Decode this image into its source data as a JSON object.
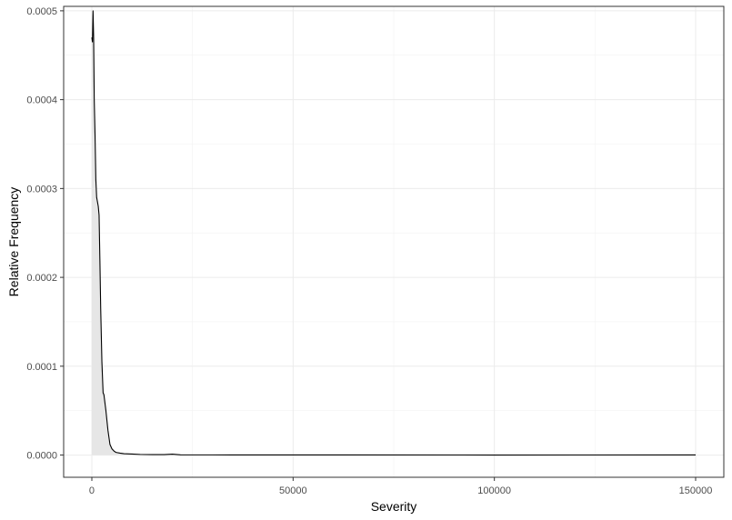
{
  "chart_data": {
    "type": "area",
    "xlabel": "Severity",
    "ylabel": "Relative Frequency",
    "xlim": [
      -7000,
      157000
    ],
    "ylim": [
      -2.5e-05,
      0.000505
    ],
    "x_ticks": [
      {
        "value": 0,
        "label": "0"
      },
      {
        "value": 50000,
        "label": "50000"
      },
      {
        "value": 100000,
        "label": "100000"
      },
      {
        "value": 150000,
        "label": "150000"
      }
    ],
    "y_ticks": [
      {
        "value": 0,
        "label": "0.0000"
      },
      {
        "value": 0.0001,
        "label": "0.0001"
      },
      {
        "value": 0.0002,
        "label": "0.0002"
      },
      {
        "value": 0.0003,
        "label": "0.0003"
      },
      {
        "value": 0.0004,
        "label": "0.0004"
      },
      {
        "value": 0.0005,
        "label": "0.0005"
      }
    ],
    "grid": true,
    "fill_color": "#e6e6e6",
    "line_color": "#000000",
    "x": [
      0,
      150,
      300,
      450,
      600,
      800,
      1000,
      1200,
      1400,
      1600,
      1800,
      2000,
      2200,
      2500,
      2800,
      3000,
      3500,
      4000,
      4500,
      5000,
      5500,
      6000,
      7000,
      8000,
      10000,
      12000,
      15000,
      18000,
      20000,
      22000,
      30000,
      50000,
      100000,
      150000
    ],
    "values": [
      0.00047,
      0.000465,
      0.0005,
      0.00047,
      0.0004,
      0.00036,
      0.00031,
      0.00029,
      0.000285,
      0.00028,
      0.00027,
      0.00022,
      0.000165,
      0.000105,
      7e-05,
      6.8e-05,
      5e-05,
      2.8e-05,
      1.2e-05,
      7e-06,
      4.5e-06,
      3e-06,
      2.2e-06,
      1.5e-06,
      1.2e-06,
      7e-07,
      5e-07,
      5e-07,
      1e-06,
      3e-07,
      2e-07,
      1e-07,
      5e-08,
      1e-07
    ]
  }
}
